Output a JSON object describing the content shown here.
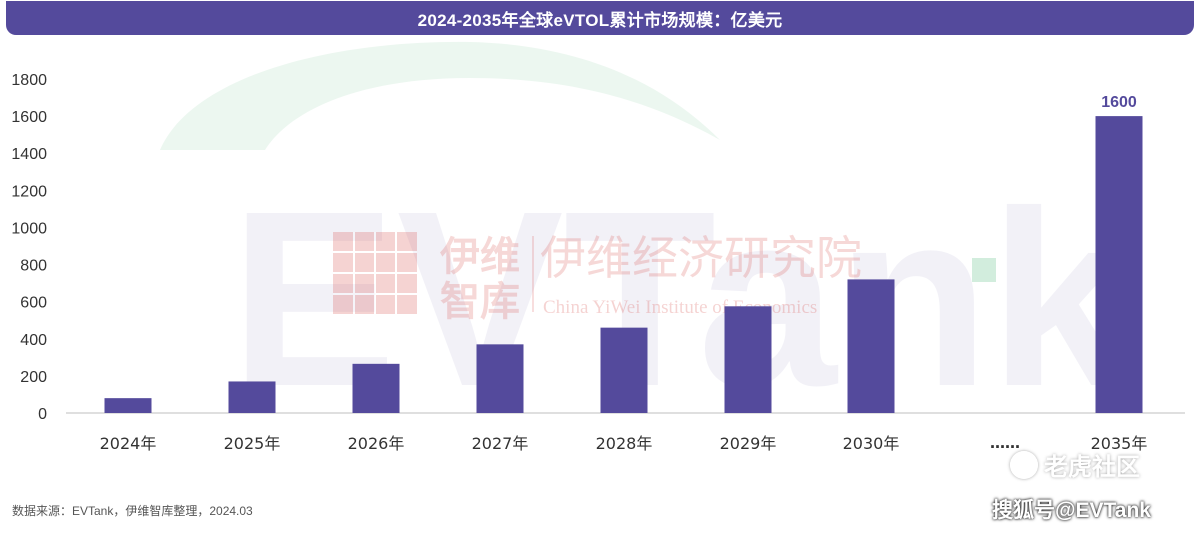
{
  "title": "2024-2035年全球eVTOL累计市场规模：亿美元",
  "chart_data": {
    "type": "bar",
    "title": "2024-2035年全球eVTOL累计市场规模：亿美元",
    "categories": [
      "2024年",
      "2025年",
      "2026年",
      "2027年",
      "2028年",
      "2029年",
      "2030年",
      "2035年"
    ],
    "values": [
      80,
      170,
      265,
      370,
      460,
      575,
      720,
      1600
    ],
    "data_labels": [
      {
        "category": "2035年",
        "text": "1600"
      }
    ],
    "gap_marker": "……",
    "ylim": [
      0,
      1800
    ],
    "yticks": [
      0,
      200,
      400,
      600,
      800,
      1000,
      1200,
      1400,
      1600,
      1800
    ],
    "xlabel": "",
    "ylabel": "",
    "grid": false,
    "legend": "none"
  },
  "source_note": "数据来源：EVTank，伊维智库整理，2024.03",
  "watermarks": {
    "evtank": "EVTank",
    "institute_short_1": "伊维",
    "institute_short_2": "智库",
    "institute_cn": "伊维经济研究院",
    "institute_en": "China YiWei Institute of Economics",
    "community": "老虎社区",
    "sohu": "搜狐号@EVTank"
  },
  "colors": {
    "title_bar": "#544a9c",
    "bar": "#544a9c",
    "axis": "#bfbfbf",
    "watermark_green": "#5fbf86",
    "watermark_purple": "#544a9c",
    "watermark_red": "#d9534f"
  }
}
